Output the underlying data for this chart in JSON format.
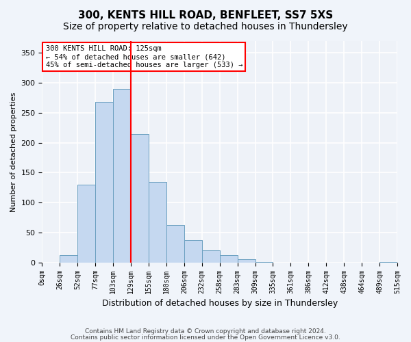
{
  "title_line1": "300, KENTS HILL ROAD, BENFLEET, SS7 5XS",
  "title_line2": "Size of property relative to detached houses in Thundersley",
  "xlabel": "Distribution of detached houses by size in Thundersley",
  "ylabel": "Number of detached properties",
  "bar_color": "#c5d8f0",
  "bar_edge_color": "#6a9fc0",
  "annotation_line1": "300 KENTS HILL ROAD: 125sqm",
  "annotation_line2": "← 54% of detached houses are smaller (642)",
  "annotation_line3": "45% of semi-detached houses are larger (533) →",
  "vline_color": "red",
  "footer_line1": "Contains HM Land Registry data © Crown copyright and database right 2024.",
  "footer_line2": "Contains public sector information licensed under the Open Government Licence v3.0.",
  "tick_labels": [
    "0sqm",
    "26sqm",
    "52sqm",
    "77sqm",
    "103sqm",
    "129sqm",
    "155sqm",
    "180sqm",
    "206sqm",
    "232sqm",
    "258sqm",
    "283sqm",
    "309sqm",
    "335sqm",
    "361sqm",
    "386sqm",
    "412sqm",
    "438sqm",
    "464sqm",
    "489sqm",
    "515sqm"
  ],
  "bar_heights": [
    0,
    12,
    130,
    268,
    290,
    215,
    135,
    63,
    37,
    20,
    12,
    5,
    1,
    0,
    0,
    0,
    0,
    0,
    0,
    1
  ],
  "ylim": [
    0,
    370
  ],
  "yticks": [
    0,
    50,
    100,
    150,
    200,
    250,
    300,
    350
  ],
  "background_color": "#eef2f8",
  "fig_background_color": "#f0f4fa",
  "grid_color": "#ffffff",
  "title_fontsize": 11,
  "subtitle_fontsize": 10,
  "vline_position": 4.5
}
